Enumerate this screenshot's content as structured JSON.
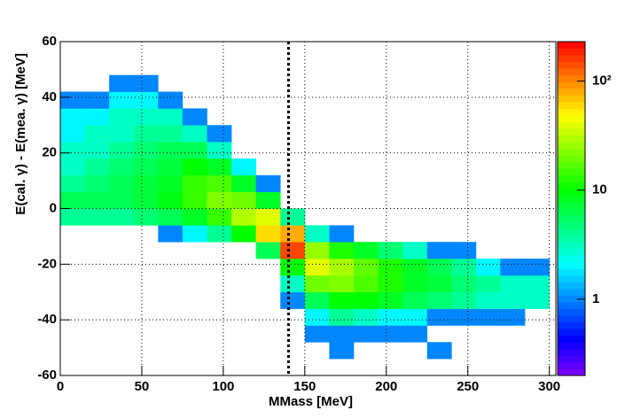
{
  "chart_data": {
    "type": "hist2d",
    "x_label": "MMass [MeV]",
    "y_label": "E(cal. γ) - E(mea. γ) [MeV]",
    "xlim": [
      0,
      304
    ],
    "ylim": [
      -60,
      60
    ],
    "xticks": [
      0,
      50,
      100,
      150,
      200,
      250,
      300
    ],
    "yticks": [
      -60,
      -40,
      -20,
      0,
      20,
      40,
      60
    ],
    "grid": true,
    "marker_x": 140,
    "zlim": [
      0.2,
      230
    ],
    "zlog": true,
    "palette": "rainbow",
    "zticks": [
      1,
      10,
      {
        "value": 100,
        "label": "10²"
      }
    ],
    "xbins": [
      0,
      15,
      30,
      45,
      60,
      75,
      90,
      105,
      120,
      135,
      150,
      165,
      180,
      195,
      210,
      225,
      240,
      255,
      270,
      285,
      300
    ],
    "ybins": [
      -60,
      -54,
      -48,
      -42,
      -36,
      -30,
      -24,
      -18,
      -12,
      -6,
      0,
      6,
      12,
      18,
      24,
      30,
      36,
      42,
      48,
      54,
      60
    ],
    "values": [
      [
        0,
        0,
        0,
        0,
        0,
        0,
        0,
        0,
        0,
        4,
        6,
        4,
        3,
        3,
        2,
        2,
        1,
        0,
        0,
        0
      ],
      [
        0,
        0,
        0,
        0,
        0,
        0,
        0,
        0,
        0,
        4,
        6,
        5,
        4,
        3,
        3,
        2,
        1,
        0,
        0,
        0
      ],
      [
        0,
        0,
        0,
        0,
        0,
        0,
        0,
        0,
        0,
        4,
        6,
        6,
        5,
        4,
        3,
        3,
        2,
        1,
        0,
        0
      ],
      [
        0,
        0,
        0,
        0,
        0,
        0,
        0,
        0,
        0,
        5,
        7,
        7,
        6,
        5,
        4,
        3,
        2,
        1,
        0,
        0
      ],
      [
        0,
        0,
        0,
        0,
        0,
        0,
        0,
        0,
        1,
        6,
        9,
        8,
        7,
        6,
        4,
        3,
        1,
        0,
        0,
        0
      ],
      [
        0,
        0,
        0,
        0,
        0,
        0,
        0,
        0,
        2,
        8,
        14,
        14,
        10,
        6,
        3,
        1,
        0,
        0,
        0,
        0
      ],
      [
        0,
        0,
        0,
        0,
        0,
        0,
        0,
        0,
        4,
        14,
        22,
        16,
        8,
        3,
        1,
        0,
        0,
        0,
        0,
        0
      ],
      [
        0,
        0,
        0,
        0,
        0,
        0,
        0,
        0,
        10,
        30,
        20,
        8,
        2,
        0,
        0,
        0,
        0,
        0,
        0,
        0
      ],
      [
        0,
        0,
        0,
        0,
        0,
        0,
        0,
        6,
        60,
        40,
        8,
        1,
        0,
        0,
        0,
        0,
        0,
        0,
        0,
        0
      ],
      [
        0,
        0,
        0,
        0,
        1,
        3,
        10,
        150,
        80,
        4,
        0,
        0,
        0,
        0,
        0,
        0,
        0,
        0,
        0,
        0
      ],
      [
        0,
        0,
        1,
        2,
        6,
        20,
        40,
        25,
        3,
        0,
        0,
        0,
        0,
        0,
        0,
        0,
        0,
        0,
        0,
        0
      ],
      [
        0,
        1,
        1,
        4,
        10,
        22,
        28,
        12,
        1,
        0,
        0,
        0,
        0,
        0,
        0,
        0,
        0,
        0,
        0,
        0
      ],
      [
        0,
        0,
        1,
        3,
        10,
        16,
        18,
        8,
        0,
        0,
        0,
        0,
        0,
        0,
        0,
        0,
        0,
        0,
        0,
        0
      ],
      [
        0,
        0,
        1,
        2,
        8,
        12,
        12,
        5,
        0,
        0,
        0,
        0,
        0,
        0,
        0,
        0,
        0,
        0,
        0,
        0
      ],
      [
        0,
        0,
        1,
        2,
        6,
        8,
        8,
        3,
        0,
        0,
        0,
        0,
        0,
        0,
        0,
        0,
        0,
        0,
        0,
        0
      ],
      [
        0,
        1,
        0,
        1,
        5,
        7,
        6,
        1,
        0,
        0,
        0,
        0,
        0,
        0,
        0,
        0,
        0,
        0,
        0,
        0
      ],
      [
        0,
        0,
        0,
        1,
        4,
        5,
        4,
        1,
        0,
        0,
        0,
        0,
        0,
        0,
        0,
        0,
        0,
        0,
        0,
        0
      ],
      [
        0,
        0,
        0,
        1,
        3,
        4,
        2,
        0,
        0,
        0,
        0,
        0,
        0,
        0,
        0,
        0,
        0,
        0,
        0,
        0
      ],
      [
        0,
        0,
        0,
        1,
        3,
        3,
        1,
        0,
        0,
        0,
        0,
        0,
        0,
        0,
        0,
        0,
        0,
        0,
        0,
        0
      ],
      [
        0,
        0,
        0,
        0,
        3,
        3,
        1,
        0,
        0,
        0,
        0,
        0,
        0,
        0,
        0,
        0,
        0,
        0,
        0,
        0
      ]
    ]
  }
}
